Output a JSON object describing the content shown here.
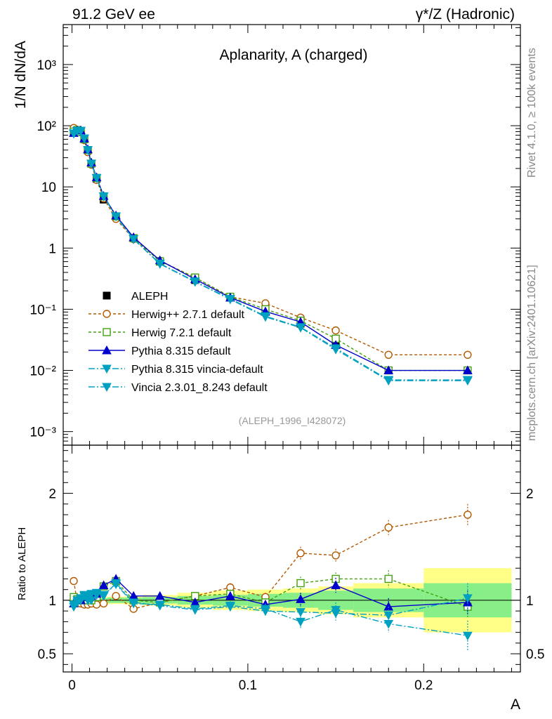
{
  "header": {
    "left": "91.2 GeV ee",
    "right": "γ*/Z (Hadronic)"
  },
  "side_labels": {
    "rivet": "Rivet 4.1.0, ≥ 100k events",
    "mcplots": "mcplots.cern.ch [arXiv:2401.10621]"
  },
  "colors": {
    "aleph": "#000000",
    "herwigpp": "#b35900",
    "herwig7": "#44a010",
    "pythia": "#0000cc",
    "vincia": "#00a0c0",
    "band_yellow": "#ffff88",
    "band_green": "#88ee88"
  },
  "chart_data": [
    {
      "type": "line",
      "title": "Aplanarity, A (charged)",
      "ylabel": "1/N  dN/dA",
      "xlabel": "A",
      "yscale": "log",
      "xlim": [
        -0.005,
        0.255
      ],
      "ylim": [
        0.0006,
        4500
      ],
      "x_ticks": [
        "0",
        "0.1",
        "0.2"
      ],
      "y_ticks": [
        "10⁻³",
        "10⁻²",
        "10⁻¹",
        "1",
        "10",
        "10²",
        "10³"
      ],
      "annotation": "(ALEPH_1996_I428072)",
      "x": [
        0.001,
        0.003,
        0.005,
        0.007,
        0.009,
        0.011,
        0.014,
        0.018,
        0.025,
        0.035,
        0.05,
        0.07,
        0.09,
        0.11,
        0.13,
        0.15,
        0.18,
        0.225
      ],
      "series": [
        {
          "name": "ALEPH",
          "style": "data",
          "values": [
            78,
            84,
            80,
            60,
            40,
            24,
            13.5,
            6.2,
            3.3,
            1.45,
            0.6,
            0.3,
            0.155,
            0.09,
            0.058,
            0.028,
            0.01,
            0.01
          ]
        },
        {
          "name": "Herwig++ 2.7.1 default",
          "style": "herwigpp",
          "values": [
            92,
            82,
            78,
            58,
            37,
            23,
            13,
            6.5,
            3.0,
            1.4,
            0.62,
            0.33,
            0.16,
            0.125,
            0.073,
            0.045,
            0.018,
            0.018
          ]
        },
        {
          "name": "Herwig 7.2.1 default",
          "style": "herwig7",
          "values": [
            80,
            85,
            80,
            60,
            40,
            24,
            14,
            7.0,
            3.3,
            1.45,
            0.61,
            0.33,
            0.16,
            0.1,
            0.065,
            0.033,
            0.01,
            0.01
          ]
        },
        {
          "name": "Pythia 8.315 default",
          "style": "pythia",
          "values": [
            76,
            84,
            84,
            62,
            41,
            25,
            14.3,
            7.1,
            3.4,
            1.5,
            0.63,
            0.31,
            0.155,
            0.092,
            0.062,
            0.026,
            0.01,
            0.01
          ]
        },
        {
          "name": "Pythia 8.315 vincia-default",
          "style": "vincia",
          "values": [
            74,
            82,
            82,
            62,
            40,
            24,
            14,
            7.0,
            3.3,
            1.4,
            0.55,
            0.28,
            0.145,
            0.075,
            0.05,
            0.022,
            0.0068,
            0.0068
          ]
        },
        {
          "name": "Vincia 2.3.01_8.243 default",
          "style": "vincia",
          "values": [
            75,
            83,
            83,
            62,
            40,
            24,
            14,
            7.0,
            3.3,
            1.4,
            0.56,
            0.285,
            0.148,
            0.077,
            0.051,
            0.023,
            0.007,
            0.007
          ]
        }
      ]
    },
    {
      "type": "line",
      "ylabel": "Ratio to ALEPH",
      "xlabel": "A",
      "ylim": [
        0.33,
        2.45
      ],
      "y_ticks": [
        "0.5",
        "1",
        "2"
      ],
      "x": [
        0.001,
        0.003,
        0.005,
        0.007,
        0.009,
        0.011,
        0.014,
        0.018,
        0.025,
        0.035,
        0.05,
        0.07,
        0.09,
        0.11,
        0.13,
        0.15,
        0.18,
        0.225
      ],
      "bins": [
        [
          0.0,
          0.002
        ],
        [
          0.002,
          0.004
        ],
        [
          0.004,
          0.006
        ],
        [
          0.006,
          0.008
        ],
        [
          0.008,
          0.01
        ],
        [
          0.01,
          0.012
        ],
        [
          0.012,
          0.016
        ],
        [
          0.016,
          0.02
        ],
        [
          0.02,
          0.03
        ],
        [
          0.03,
          0.04
        ],
        [
          0.04,
          0.06
        ],
        [
          0.06,
          0.08
        ],
        [
          0.08,
          0.1
        ],
        [
          0.1,
          0.12
        ],
        [
          0.12,
          0.14
        ],
        [
          0.14,
          0.16
        ],
        [
          0.16,
          0.2
        ],
        [
          0.2,
          0.25
        ]
      ],
      "band_total": [
        0.035,
        0.03,
        0.03,
        0.03,
        0.03,
        0.03,
        0.03,
        0.03,
        0.035,
        0.04,
        0.05,
        0.07,
        0.09,
        0.1,
        0.11,
        0.13,
        0.16,
        0.3
      ],
      "band_stat": [
        0.02,
        0.02,
        0.02,
        0.02,
        0.02,
        0.02,
        0.02,
        0.02,
        0.025,
        0.025,
        0.03,
        0.04,
        0.05,
        0.06,
        0.07,
        0.09,
        0.11,
        0.16
      ],
      "series": [
        {
          "name": "Herwig++ 2.7.1 default",
          "style": "herwigpp",
          "values": [
            1.18,
            0.98,
            0.97,
            0.96,
            0.96,
            0.97,
            0.96,
            0.97,
            1.04,
            0.92,
            0.98,
            1.04,
            1.12,
            1.03,
            1.44,
            1.42,
            1.68,
            1.8
          ],
          "errors": [
            0.02,
            0.02,
            0.02,
            0.02,
            0.02,
            0.02,
            0.02,
            0.02,
            0.02,
            0.02,
            0.02,
            0.03,
            0.04,
            0.04,
            0.06,
            0.06,
            0.07,
            0.1
          ]
        },
        {
          "name": "Herwig 7.2.1 default",
          "style": "herwig7",
          "values": [
            1.03,
            1.01,
            1.0,
            1.0,
            1.0,
            1.0,
            1.03,
            1.13,
            1.18,
            1.0,
            0.98,
            1.04,
            1.06,
            0.98,
            1.16,
            1.2,
            1.2,
            0.94
          ],
          "errors": [
            0.02,
            0.02,
            0.02,
            0.02,
            0.02,
            0.02,
            0.02,
            0.02,
            0.02,
            0.02,
            0.02,
            0.03,
            0.04,
            0.04,
            0.06,
            0.06,
            0.08,
            0.1
          ]
        },
        {
          "name": "Pythia 8.315 default",
          "style": "pythia",
          "values": [
            0.97,
            1.0,
            1.0,
            1.03,
            1.03,
            1.04,
            1.06,
            1.14,
            1.2,
            1.04,
            1.04,
            0.98,
            1.04,
            0.96,
            1.01,
            1.14,
            0.94,
            0.98
          ],
          "errors": [
            0.02,
            0.02,
            0.02,
            0.02,
            0.02,
            0.02,
            0.02,
            0.02,
            0.02,
            0.02,
            0.02,
            0.03,
            0.04,
            0.04,
            0.06,
            0.07,
            0.08,
            0.11
          ]
        },
        {
          "name": "Pythia 8.315 vincia-default",
          "style": "vincia",
          "values": [
            0.94,
            0.98,
            1.0,
            1.04,
            1.0,
            1.0,
            1.05,
            1.04,
            1.16,
            0.98,
            0.95,
            0.91,
            0.94,
            0.9,
            0.89,
            0.88,
            0.86,
            1.02
          ],
          "errors": [
            0.02,
            0.02,
            0.02,
            0.02,
            0.02,
            0.02,
            0.02,
            0.02,
            0.02,
            0.02,
            0.02,
            0.03,
            0.04,
            0.05,
            0.06,
            0.07,
            0.08,
            0.14
          ]
        },
        {
          "name": "Vincia 2.3.01_8.243 default",
          "style": "vincia",
          "values": [
            0.96,
            1.0,
            1.02,
            1.05,
            1.04,
            1.06,
            1.07,
            1.05,
            1.15,
            0.97,
            0.96,
            0.92,
            0.95,
            0.92,
            0.8,
            0.91,
            0.78,
            0.67
          ],
          "errors": [
            0.02,
            0.02,
            0.02,
            0.02,
            0.02,
            0.02,
            0.02,
            0.02,
            0.02,
            0.02,
            0.02,
            0.03,
            0.04,
            0.05,
            0.06,
            0.07,
            0.08,
            0.14
          ]
        }
      ]
    }
  ]
}
